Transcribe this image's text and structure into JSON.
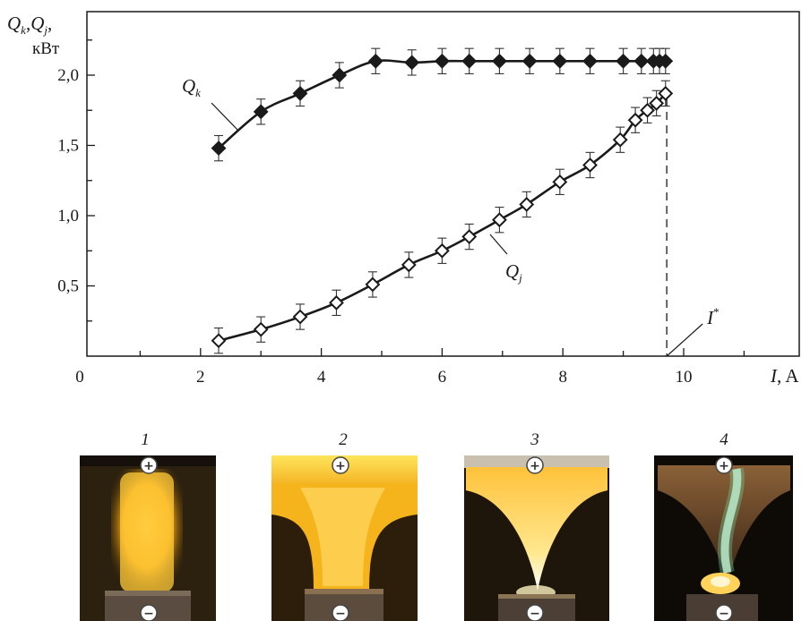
{
  "chart_data": {
    "type": "scatter",
    "x_axis": {
      "label_symbol": "I",
      "label_unit": "A",
      "ticks": [
        "0",
        "2",
        "4",
        "6",
        "8",
        "10"
      ],
      "range": [
        0,
        12
      ]
    },
    "y_axis": {
      "label_line1": "Q",
      "label_sub1": "k",
      "label_sep": ",",
      "label_sub2": "j",
      "label_unit": "кВт",
      "ticks": [
        "0,5",
        "1,0",
        "1,5",
        "2,0"
      ],
      "tick_values": [
        0.5,
        1.0,
        1.5,
        2.0
      ],
      "range": [
        0,
        2.4
      ]
    },
    "series": [
      {
        "name": "Q_k",
        "label_main": "Q",
        "label_sub": "k",
        "marker": "filled-diamond",
        "x": [
          2.3,
          3.0,
          3.65,
          4.3,
          4.9,
          5.5,
          6.0,
          6.45,
          6.95,
          7.45,
          7.95,
          8.45,
          9.0,
          9.3,
          9.5,
          9.6,
          9.7
        ],
        "y": [
          1.48,
          1.74,
          1.87,
          2.0,
          2.1,
          2.09,
          2.1,
          2.1,
          2.1,
          2.1,
          2.1,
          2.1,
          2.1,
          2.1,
          2.1,
          2.1,
          2.1
        ],
        "error": 0.09
      },
      {
        "name": "Q_j",
        "label_main": "Q",
        "label_sub": "j",
        "marker": "open-diamond",
        "x": [
          2.3,
          3.0,
          3.65,
          4.25,
          4.85,
          5.45,
          6.0,
          6.45,
          6.95,
          7.4,
          7.95,
          8.45,
          8.95,
          9.2,
          9.4,
          9.55,
          9.7
        ],
        "y": [
          0.11,
          0.19,
          0.28,
          0.38,
          0.51,
          0.65,
          0.75,
          0.85,
          0.97,
          1.08,
          1.24,
          1.36,
          1.54,
          1.68,
          1.75,
          1.8,
          1.87
        ],
        "error": 0.09
      }
    ],
    "annotation": {
      "text": "I",
      "superscript": "*",
      "x": 9.72
    }
  },
  "photos": {
    "labels": [
      "1",
      "2",
      "3",
      "4"
    ],
    "top_sign": "+",
    "bottom_sign": "−"
  }
}
